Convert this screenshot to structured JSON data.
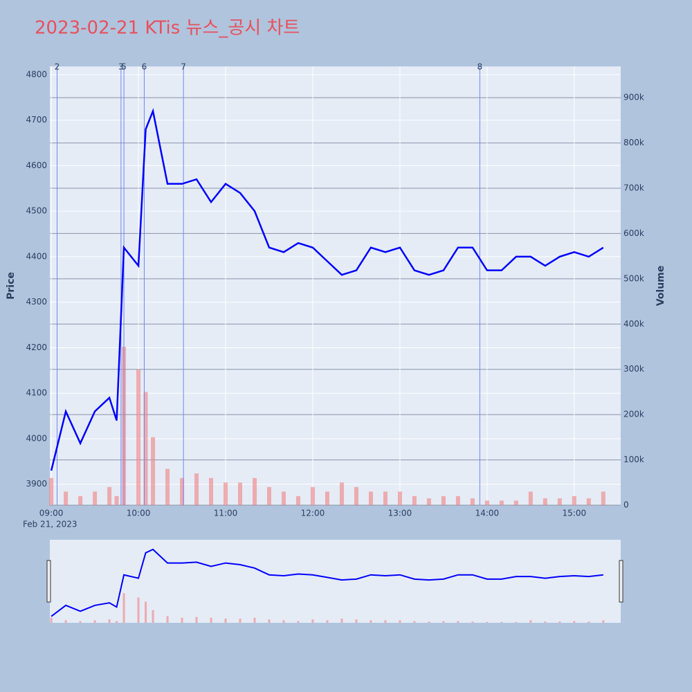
{
  "chart_data": {
    "type": "line",
    "title": "2023-02-21 KTis 뉴스_공시 차트",
    "date_label": "Feb 21, 2023",
    "ylabel": "Price",
    "y2label": "Volume",
    "x": [
      "09:00",
      "09:10",
      "09:20",
      "09:30",
      "09:40",
      "09:45",
      "09:50",
      "10:00",
      "10:05",
      "10:10",
      "10:20",
      "10:30",
      "10:40",
      "10:50",
      "11:00",
      "11:10",
      "11:20",
      "11:30",
      "11:40",
      "11:50",
      "12:00",
      "12:10",
      "12:20",
      "12:30",
      "12:40",
      "12:50",
      "13:00",
      "13:10",
      "13:20",
      "13:30",
      "13:40",
      "13:50",
      "14:00",
      "14:10",
      "14:20",
      "14:30",
      "14:40",
      "14:50",
      "15:00",
      "15:10",
      "15:20"
    ],
    "series": [
      {
        "name": "Price",
        "color": "#0000ff",
        "values": [
          3930,
          4060,
          3990,
          4060,
          4090,
          4040,
          4420,
          4380,
          4680,
          4720,
          4560,
          4560,
          4570,
          4520,
          4560,
          4540,
          4500,
          4420,
          4410,
          4430,
          4420,
          4390,
          4360,
          4370,
          4420,
          4410,
          4420,
          4370,
          4360,
          4370,
          4420,
          4420,
          4370,
          4370,
          4400,
          4400,
          4380,
          4400,
          4410,
          4400,
          4420
        ]
      },
      {
        "name": "Volume",
        "color": "#f08080",
        "axis": "y2",
        "values": [
          60000,
          30000,
          20000,
          30000,
          40000,
          20000,
          350000,
          300000,
          250000,
          150000,
          80000,
          60000,
          70000,
          60000,
          50000,
          50000,
          60000,
          40000,
          30000,
          20000,
          40000,
          30000,
          50000,
          40000,
          30000,
          30000,
          30000,
          20000,
          15000,
          20000,
          20000,
          15000,
          10000,
          10000,
          10000,
          30000,
          15000,
          15000,
          20000,
          15000,
          30000
        ]
      }
    ],
    "events": [
      {
        "label": "2",
        "x": "09:04"
      },
      {
        "label": "3",
        "x": "09:48"
      },
      {
        "label": "5",
        "x": "09:50"
      },
      {
        "label": "6",
        "x": "10:04"
      },
      {
        "label": "7",
        "x": "10:31"
      },
      {
        "label": "8",
        "x": "13:55"
      }
    ],
    "xlim": [
      "08:59",
      "15:32"
    ],
    "xticks": [
      "09:00",
      "10:00",
      "11:00",
      "12:00",
      "13:00",
      "14:00",
      "15:00"
    ],
    "ylim": [
      3854,
      4818
    ],
    "yticks": [
      3900,
      4000,
      4100,
      4200,
      4300,
      4400,
      4500,
      4600,
      4700,
      4800
    ],
    "y2lim": [
      0,
      969000
    ],
    "y2ticks": [
      0,
      {
        "value": 100000,
        "label": "100k"
      },
      {
        "value": 200000,
        "label": "200k"
      },
      {
        "value": 300000,
        "label": "300k"
      },
      {
        "value": 400000,
        "label": "400k"
      },
      {
        "value": 500000,
        "label": "500k"
      },
      {
        "value": 600000,
        "label": "600k"
      },
      {
        "value": 700000,
        "label": "700k"
      },
      {
        "value": 800000,
        "label": "800k"
      },
      {
        "value": 900000,
        "label": "900k"
      }
    ],
    "grid": true
  }
}
